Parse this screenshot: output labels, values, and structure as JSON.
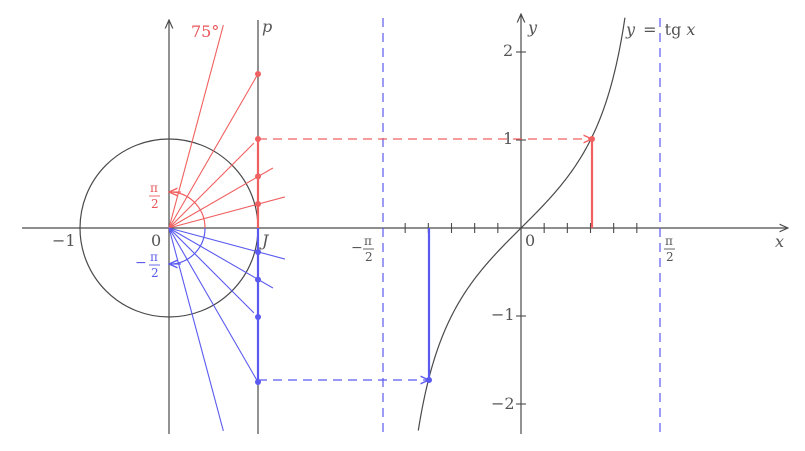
{
  "colors": {
    "axis": "#4a4a4a",
    "red": "#f06060",
    "blue": "#5a5af0",
    "curve": "#4a4a4a"
  },
  "unit_circle": {
    "label_origin": "0",
    "label_minus_one": "−1",
    "label_J": "J",
    "label_p": "p",
    "label_75": "75°",
    "label_pi2_num": "π",
    "label_pi2_den": "2",
    "label_negpi2_sign": "−",
    "label_negpi2_num": "π",
    "label_negpi2_den": "2",
    "angles_red_deg": [
      15,
      30,
      45,
      60,
      75
    ],
    "angles_blue_deg": [
      -15,
      -30,
      -45,
      -60,
      -75
    ],
    "red_points_tan": [
      0.27,
      0.58,
      1.0,
      1.73
    ],
    "blue_points_tan": [
      -0.27,
      -0.58,
      -1.0,
      -1.73
    ]
  },
  "graph": {
    "label_x": "x",
    "label_y": "y",
    "label_origin": "0",
    "label_func_prefix": "y",
    "label_func_eq": "=",
    "label_func": "tg",
    "label_func_var": "x",
    "y_ticks": [
      "2",
      "1",
      "−1",
      "−2"
    ],
    "x_label_negpi2_sign": "−",
    "x_label_negpi2_num": "π",
    "x_label_negpi2_den": "2",
    "x_label_pi2_num": "π",
    "x_label_pi2_den": "2",
    "red_point": {
      "x": 0.785,
      "y": 1.0
    },
    "blue_point": {
      "x": -1.047,
      "y": -1.73
    }
  }
}
